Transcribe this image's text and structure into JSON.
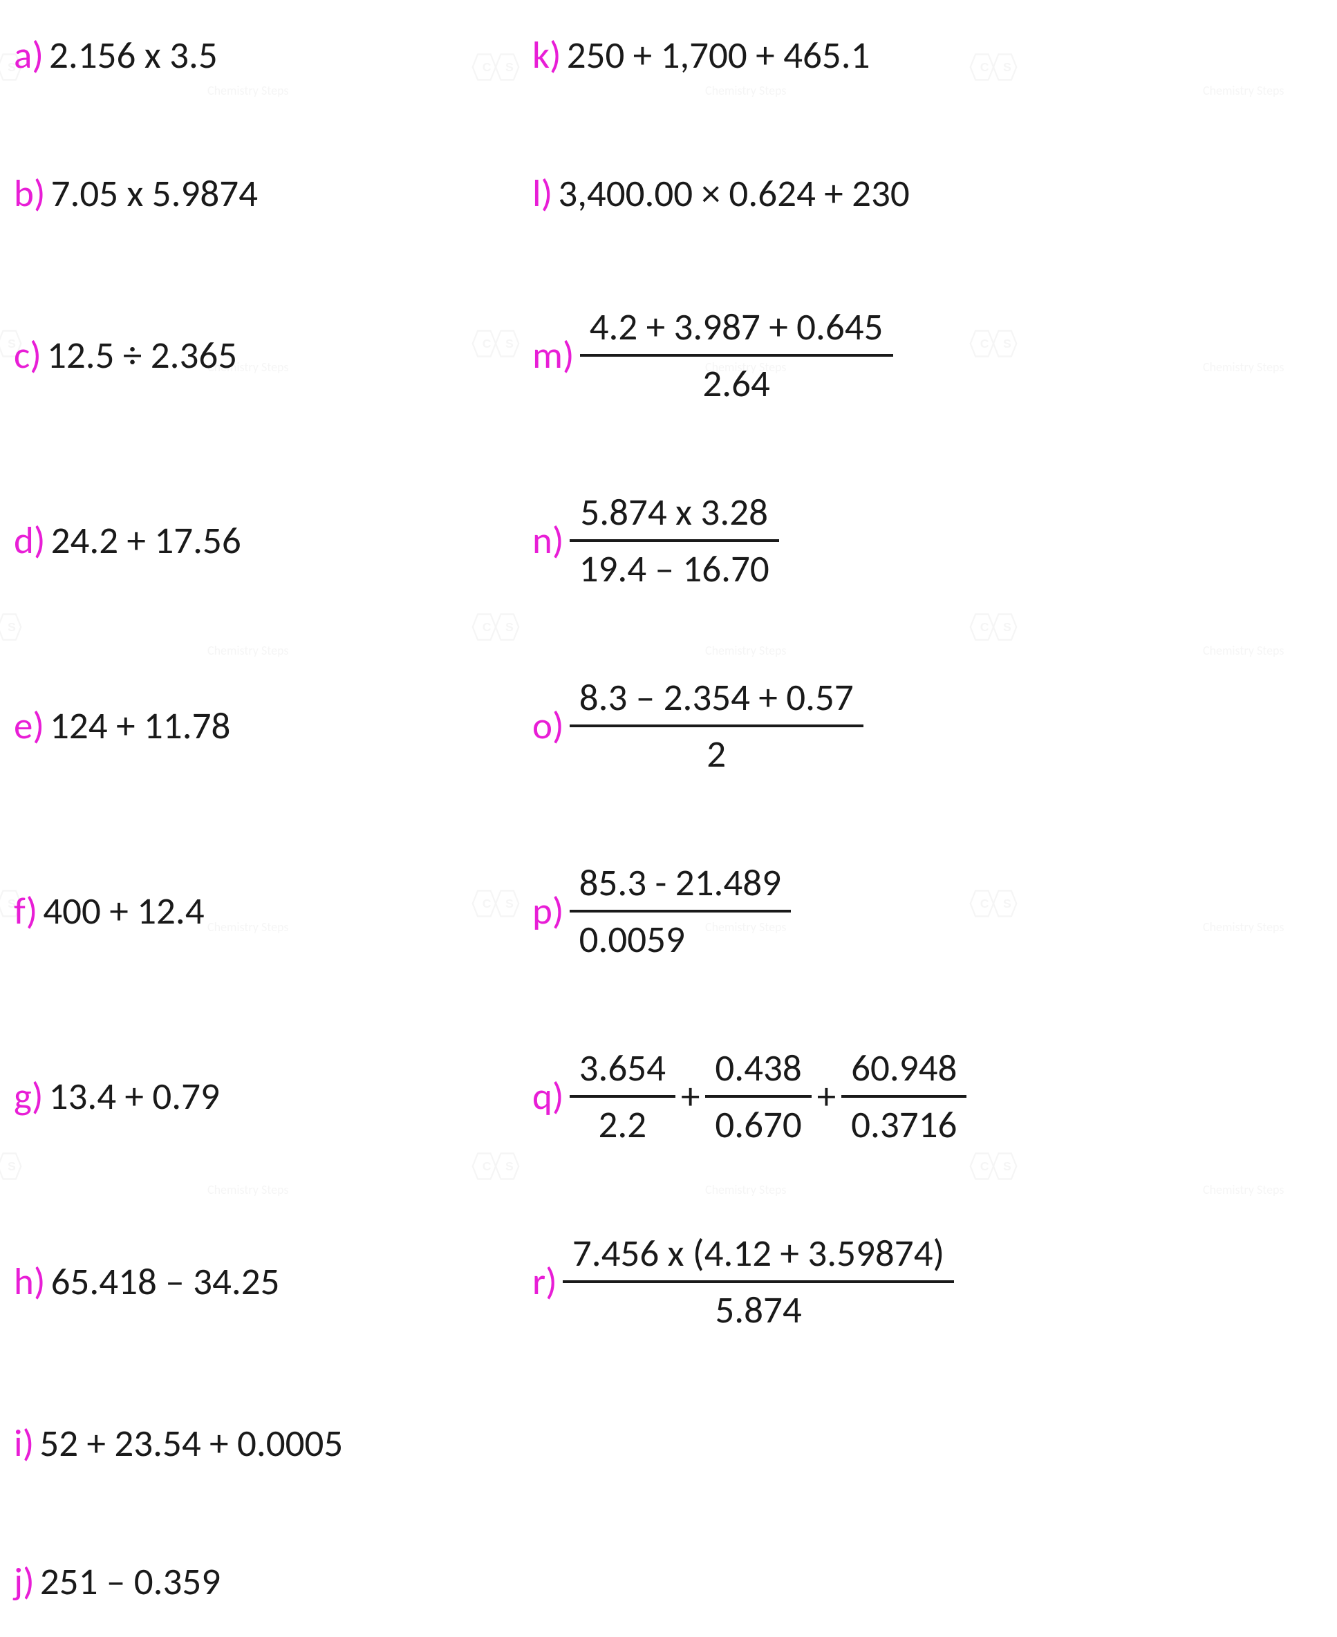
{
  "accent_color": "#e81ed6",
  "text_color": "#1a1a1a",
  "background_color": "#ffffff",
  "fontsize": 55,
  "watermark_text": "Chemistry Steps",
  "problems": {
    "a": {
      "letter": "a)",
      "expr": "2.156 x 3.5"
    },
    "b": {
      "letter": "b)",
      "expr": "7.05 x 5.9874"
    },
    "c": {
      "letter": "c)",
      "expr": "12.5 ÷ 2.365"
    },
    "d": {
      "letter": "d)",
      "expr": "24.2 + 17.56"
    },
    "e": {
      "letter": "e)",
      "expr": "124 + 11.78"
    },
    "f": {
      "letter": "f)",
      "expr": "400 + 12.4"
    },
    "g": {
      "letter": "g)",
      "expr": "13.4 + 0.79"
    },
    "h": {
      "letter": "h)",
      "expr": "65.418 – 34.25"
    },
    "i": {
      "letter": "i)",
      "expr": "52 + 23.54 + 0.0005"
    },
    "j": {
      "letter": "j)",
      "expr": "251 – 0.359"
    },
    "k": {
      "letter": "k)",
      "expr": "250 + 1,700 + 465.1"
    },
    "l": {
      "letter": "l)",
      "expr": "3,400.00 × 0.624 + 230"
    },
    "m": {
      "letter": "m)",
      "num": "4.2 + 3.987 + 0.645",
      "den": "2.64"
    },
    "n": {
      "letter": "n)",
      "num": "5.874 x 3.28",
      "den": "19.4 – 16.70"
    },
    "o": {
      "letter": "o)",
      "num": "8.3 – 2.354 + 0.57",
      "den": "2"
    },
    "p": {
      "letter": "p)",
      "num": "85.3 - 21.489",
      "den": "0.0059"
    },
    "q": {
      "letter": "q)",
      "f1": {
        "num": "3.654",
        "den": "2.2"
      },
      "f2": {
        "num": "0.438",
        "den": "0.670"
      },
      "f3": {
        "num": "60.948",
        "den": "0.3716"
      },
      "op": "+"
    },
    "r": {
      "letter": "r)",
      "num": "7.456 x (4.12 + 3.59874)",
      "den": "5.874"
    }
  }
}
